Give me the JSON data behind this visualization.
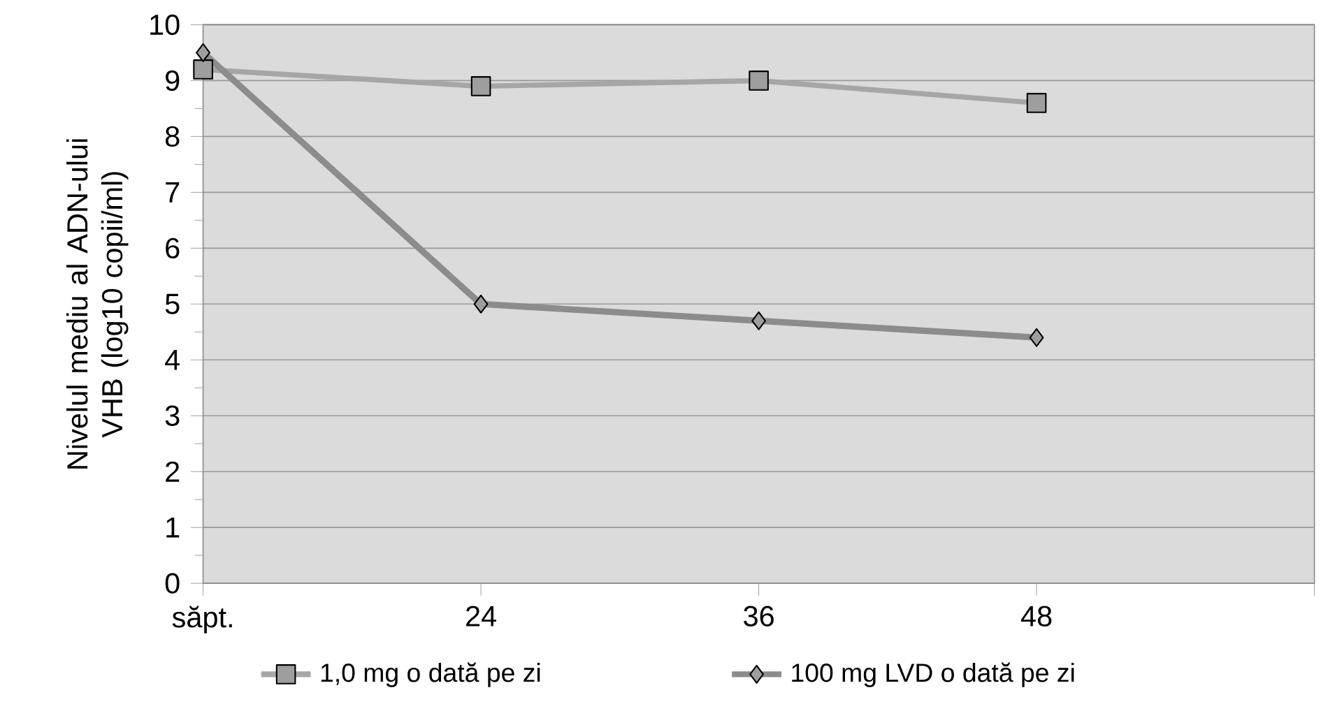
{
  "chart_data": {
    "type": "line",
    "ylabel": "Nivelul mediu al ADN-ului VHB (log10 copii/ml)",
    "categories": [
      "săpt.",
      "24",
      "36",
      "48",
      null
    ],
    "ylim": [
      0,
      10
    ],
    "yticks": [
      0,
      1,
      2,
      3,
      4,
      5,
      6,
      7,
      8,
      9,
      10
    ],
    "grid": "y",
    "legend": "bottom",
    "series": [
      {
        "name": "1,0 mg o dată pe zi",
        "color": "#a6a6a6",
        "marker": "square",
        "values": [
          9.2,
          8.9,
          9.0,
          8.6,
          null
        ]
      },
      {
        "name": "100 mg LVD o dată pe zi",
        "color": "#8c8c8c",
        "marker": "diamond",
        "values": [
          9.5,
          5.0,
          4.7,
          4.4,
          null
        ]
      }
    ]
  }
}
